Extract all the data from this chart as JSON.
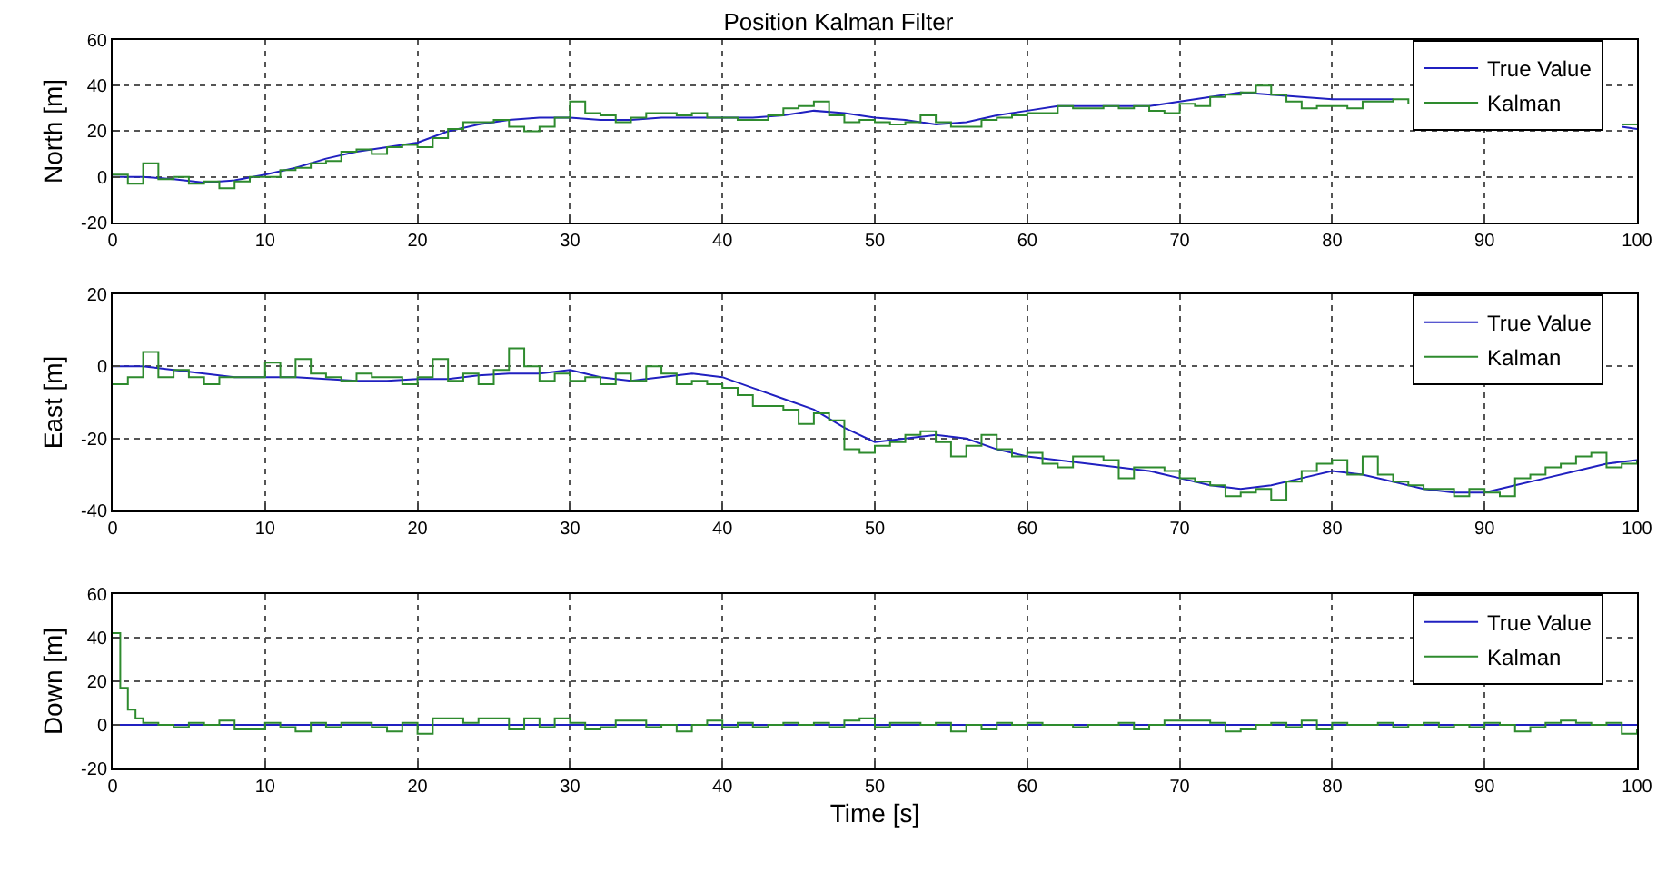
{
  "chart_data": [
    {
      "type": "line",
      "title": "Position Kalman Filter",
      "ylabel": "North [m]",
      "xlim": [
        0,
        100
      ],
      "xticks": [
        0,
        10,
        20,
        30,
        40,
        50,
        60,
        70,
        80,
        90,
        100
      ],
      "ylim": [
        -20,
        60
      ],
      "yticks": [
        -20,
        0,
        20,
        40,
        60
      ],
      "grid": true,
      "legend": "top right",
      "series": [
        {
          "name": "True Value",
          "color": "#2020c0",
          "type": "line",
          "x": [
            0,
            2,
            4,
            6,
            8,
            10,
            12,
            14,
            16,
            18,
            20,
            22,
            24,
            26,
            28,
            30,
            32,
            34,
            36,
            38,
            40,
            42,
            44,
            46,
            48,
            50,
            52,
            54,
            56,
            58,
            60,
            62,
            64,
            66,
            68,
            70,
            72,
            74,
            76,
            78,
            80,
            82,
            84,
            86,
            88,
            90,
            92,
            94,
            96,
            99,
            100
          ],
          "values": [
            0,
            0,
            -1,
            -2.5,
            -1.5,
            1,
            4,
            8,
            11,
            13,
            15,
            20,
            23,
            25,
            26,
            26,
            25,
            25,
            26,
            26,
            26,
            26,
            27,
            29,
            28,
            26,
            25,
            23,
            24,
            27,
            29,
            31,
            31,
            31,
            31,
            33,
            35,
            37,
            36,
            35,
            34,
            34,
            34,
            null,
            null,
            null,
            null,
            null,
            null,
            22,
            21
          ]
        },
        {
          "name": "Kalman",
          "color": "#2e8b2e",
          "type": "step",
          "x": [
            0,
            1,
            2,
            3,
            4,
            5,
            6,
            7,
            8,
            9,
            10,
            11,
            12,
            13,
            14,
            15,
            16,
            17,
            18,
            19,
            20,
            21,
            22,
            23,
            24,
            25,
            26,
            27,
            28,
            29,
            30,
            31,
            32,
            33,
            34,
            35,
            36,
            37,
            38,
            39,
            40,
            41,
            42,
            43,
            44,
            45,
            46,
            47,
            48,
            49,
            50,
            51,
            52,
            53,
            54,
            55,
            56,
            57,
            58,
            59,
            60,
            61,
            62,
            63,
            64,
            65,
            66,
            67,
            68,
            69,
            70,
            71,
            72,
            73,
            74,
            75,
            76,
            77,
            78,
            79,
            80,
            81,
            82,
            83,
            84,
            85,
            86,
            87,
            88,
            89,
            90,
            91,
            92,
            93,
            94,
            95,
            96,
            97,
            98,
            99,
            100
          ],
          "values": [
            1,
            -3,
            6,
            -1,
            0,
            -3,
            -2,
            -5,
            -2,
            0,
            0,
            3,
            4,
            6,
            7,
            11,
            12,
            10,
            13,
            14,
            13,
            17,
            21,
            24,
            24,
            25,
            22,
            20,
            22,
            26,
            33,
            28,
            27,
            24,
            26,
            28,
            28,
            27,
            28,
            26,
            26,
            25,
            25,
            27,
            30,
            31,
            33,
            27,
            24,
            25,
            24,
            23,
            24,
            27,
            24,
            22,
            22,
            25,
            26,
            27,
            28,
            28,
            31,
            30,
            30,
            31,
            30,
            31,
            29,
            28,
            32,
            31,
            35,
            36,
            37,
            40,
            36,
            33,
            30,
            31,
            31,
            30,
            33,
            33,
            34,
            32,
            null,
            null,
            null,
            null,
            null,
            null,
            null,
            null,
            null,
            null,
            null,
            null,
            null,
            23,
            23
          ]
        }
      ]
    },
    {
      "type": "line",
      "ylabel": "East [m]",
      "xlim": [
        0,
        100
      ],
      "xticks": [
        0,
        10,
        20,
        30,
        40,
        50,
        60,
        70,
        80,
        90,
        100
      ],
      "ylim": [
        -40,
        20
      ],
      "yticks": [
        -40,
        -20,
        0,
        20
      ],
      "grid": true,
      "legend": "top right",
      "series": [
        {
          "name": "True Value",
          "color": "#2020c0",
          "type": "line",
          "x": [
            0,
            2,
            4,
            6,
            8,
            10,
            12,
            14,
            16,
            18,
            20,
            22,
            24,
            26,
            28,
            30,
            32,
            34,
            36,
            38,
            40,
            42,
            44,
            46,
            48,
            50,
            52,
            54,
            56,
            58,
            60,
            62,
            64,
            66,
            68,
            70,
            72,
            74,
            76,
            78,
            80,
            82,
            84,
            86,
            88,
            90,
            92,
            94,
            96,
            98,
            100
          ],
          "values": [
            0,
            0,
            -1,
            -2,
            -3,
            -3,
            -3,
            -3.5,
            -4,
            -4,
            -3.5,
            -3.5,
            -2.5,
            -2,
            -2,
            -1,
            -3,
            -4,
            -3,
            -2,
            -3,
            -6,
            -9,
            -12,
            -17,
            -21,
            -20,
            -19,
            -20,
            -23,
            -25,
            -26,
            -27,
            -28,
            -29,
            -31,
            -33,
            -34,
            -33,
            -31,
            -29,
            -30,
            -32,
            -34,
            -35,
            -35,
            -33,
            -31,
            -29,
            -27,
            -26
          ]
        },
        {
          "name": "Kalman",
          "color": "#2e8b2e",
          "type": "step",
          "x": [
            0,
            1,
            2,
            3,
            4,
            5,
            6,
            7,
            8,
            9,
            10,
            11,
            12,
            13,
            14,
            15,
            16,
            17,
            18,
            19,
            20,
            21,
            22,
            23,
            24,
            25,
            26,
            27,
            28,
            29,
            30,
            31,
            32,
            33,
            34,
            35,
            36,
            37,
            38,
            39,
            40,
            41,
            42,
            43,
            44,
            45,
            46,
            47,
            48,
            49,
            50,
            51,
            52,
            53,
            54,
            55,
            56,
            57,
            58,
            59,
            60,
            61,
            62,
            63,
            64,
            65,
            66,
            67,
            68,
            69,
            70,
            71,
            72,
            73,
            74,
            75,
            76,
            77,
            78,
            79,
            80,
            81,
            82,
            83,
            84,
            85,
            86,
            87,
            88,
            89,
            90,
            91,
            92,
            93,
            94,
            95,
            96,
            97,
            98,
            99,
            100
          ],
          "values": [
            -5,
            -3,
            4,
            -3,
            -1,
            -3,
            -5,
            -3,
            -3,
            -3,
            1,
            -3,
            2,
            -2,
            -3,
            -4,
            -2,
            -3,
            -3,
            -5,
            -3,
            2,
            -4,
            -2,
            -5,
            -1,
            5,
            0,
            -4,
            -2,
            -4,
            -3,
            -5,
            -2,
            -4,
            0,
            -2,
            -5,
            -4,
            -5,
            -6,
            -8,
            -11,
            -11,
            -12,
            -16,
            -13,
            -15,
            -23,
            -24,
            -22,
            -21,
            -19,
            -18,
            -21,
            -25,
            -22,
            -19,
            -23,
            -25,
            -24,
            -27,
            -28,
            -25,
            -25,
            -26,
            -31,
            -28,
            -28,
            -29,
            -31,
            -32,
            -33,
            -36,
            -35,
            -34,
            -37,
            -32,
            -29,
            -27,
            -26,
            -30,
            -25,
            -30,
            -32,
            -33,
            -34,
            -34,
            -36,
            -34,
            -35,
            -36,
            -31,
            -30,
            -28,
            -27,
            -25,
            -24,
            -28,
            -27,
            -26
          ]
        }
      ]
    },
    {
      "type": "line",
      "ylabel": "Down [m]",
      "xlabel": "Time [s]",
      "xlim": [
        0,
        100
      ],
      "xticks": [
        0,
        10,
        20,
        30,
        40,
        50,
        60,
        70,
        80,
        90,
        100
      ],
      "ylim": [
        -20,
        60
      ],
      "yticks": [
        -20,
        0,
        20,
        40,
        60
      ],
      "grid": true,
      "legend": "top right",
      "series": [
        {
          "name": "True Value",
          "color": "#2020c0",
          "type": "line",
          "x": [
            0,
            100
          ],
          "values": [
            0,
            0
          ]
        },
        {
          "name": "Kalman",
          "color": "#2e8b2e",
          "type": "step",
          "x": [
            0,
            0.5,
            1,
            1.5,
            2,
            3,
            4,
            5,
            6,
            7,
            8,
            9,
            10,
            11,
            12,
            13,
            14,
            15,
            16,
            17,
            18,
            19,
            20,
            21,
            22,
            23,
            24,
            25,
            26,
            27,
            28,
            29,
            30,
            31,
            32,
            33,
            34,
            35,
            36,
            37,
            38,
            39,
            40,
            41,
            42,
            43,
            44,
            45,
            46,
            47,
            48,
            49,
            50,
            51,
            52,
            53,
            54,
            55,
            56,
            57,
            58,
            59,
            60,
            61,
            62,
            63,
            64,
            65,
            66,
            67,
            68,
            69,
            70,
            71,
            72,
            73,
            74,
            75,
            76,
            77,
            78,
            79,
            80,
            81,
            82,
            83,
            84,
            85,
            86,
            87,
            88,
            89,
            90,
            91,
            92,
            93,
            94,
            95,
            96,
            97,
            98,
            99,
            100
          ],
          "values": [
            42,
            17,
            7,
            3,
            1,
            0,
            -1,
            1,
            0,
            2,
            -2,
            -2,
            1,
            -1,
            -3,
            1,
            -1,
            1,
            1,
            -1,
            -3,
            1,
            -4,
            3,
            3,
            1,
            3,
            3,
            -2,
            3,
            -1,
            3,
            1,
            -2,
            -1,
            2,
            2,
            -1,
            0,
            -3,
            0,
            2,
            -1,
            1,
            -1,
            0,
            1,
            0,
            1,
            -1,
            2,
            3,
            -1,
            1,
            1,
            0,
            1,
            -3,
            0,
            -2,
            1,
            0,
            1,
            0,
            0,
            -1,
            0,
            0,
            1,
            -2,
            0,
            2,
            2,
            2,
            1,
            -3,
            -2,
            0,
            1,
            -1,
            2,
            -2,
            1,
            0,
            0,
            1,
            -1,
            0,
            1,
            -1,
            0,
            -1,
            1,
            0,
            -3,
            -1,
            1,
            2,
            1,
            0,
            1,
            -4,
            -2
          ]
        }
      ]
    }
  ]
}
